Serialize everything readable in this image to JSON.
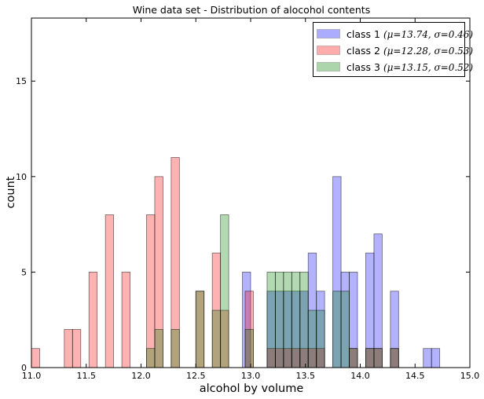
{
  "chart_data": {
    "type": "bar",
    "subtype": "overlapping-histogram",
    "title": "Wine data set - Distribution of alocohol contents",
    "xlabel": "alcohol by volume",
    "ylabel": "count",
    "xlim": [
      11.0,
      15.0
    ],
    "ylim": [
      0,
      18.3
    ],
    "xticks": [
      "11.0",
      "11.5",
      "12.0",
      "12.5",
      "13.0",
      "13.5",
      "14.0",
      "14.5",
      "15.0"
    ],
    "yticks": [
      "0",
      "5",
      "10",
      "15"
    ],
    "grid": false,
    "legend_position": "top-right",
    "bin_width": 0.075,
    "series": [
      {
        "label_text": "class 1",
        "label_math": "(μ=13.74, σ=0.46)",
        "color": "#0000ff",
        "alpha": 0.3,
        "bins": [
          {
            "x": 12.925,
            "count": 5
          },
          {
            "x": 13.15,
            "count": 4
          },
          {
            "x": 13.225,
            "count": 4
          },
          {
            "x": 13.3,
            "count": 4
          },
          {
            "x": 13.375,
            "count": 4
          },
          {
            "x": 13.45,
            "count": 4
          },
          {
            "x": 13.525,
            "count": 6
          },
          {
            "x": 13.6,
            "count": 4
          },
          {
            "x": 13.75,
            "count": 10
          },
          {
            "x": 13.825,
            "count": 5
          },
          {
            "x": 13.9,
            "count": 5
          },
          {
            "x": 14.05,
            "count": 6
          },
          {
            "x": 14.125,
            "count": 7
          },
          {
            "x": 14.275,
            "count": 4
          },
          {
            "x": 14.575,
            "count": 1
          },
          {
            "x": 14.65,
            "count": 1
          }
        ]
      },
      {
        "label_text": "class 2",
        "label_math": "(μ=12.28, σ=0.53)",
        "color": "#ff0000",
        "alpha": 0.3,
        "bins": [
          {
            "x": 11.0,
            "count": 1
          },
          {
            "x": 11.3,
            "count": 2
          },
          {
            "x": 11.375,
            "count": 2
          },
          {
            "x": 11.525,
            "count": 5
          },
          {
            "x": 11.675,
            "count": 8
          },
          {
            "x": 11.825,
            "count": 5
          },
          {
            "x": 12.05,
            "count": 8
          },
          {
            "x": 12.125,
            "count": 10
          },
          {
            "x": 12.275,
            "count": 11
          },
          {
            "x": 12.5,
            "count": 4
          },
          {
            "x": 12.65,
            "count": 6
          },
          {
            "x": 12.725,
            "count": 3
          },
          {
            "x": 12.95,
            "count": 4
          },
          {
            "x": 13.15,
            "count": 1
          },
          {
            "x": 13.225,
            "count": 1
          },
          {
            "x": 13.3,
            "count": 1
          },
          {
            "x": 13.375,
            "count": 1
          },
          {
            "x": 13.45,
            "count": 1
          },
          {
            "x": 13.525,
            "count": 1
          },
          {
            "x": 13.6,
            "count": 1
          },
          {
            "x": 13.9,
            "count": 1
          },
          {
            "x": 14.05,
            "count": 1
          },
          {
            "x": 14.125,
            "count": 1
          },
          {
            "x": 14.275,
            "count": 1
          }
        ]
      },
      {
        "label_text": "class 3",
        "label_math": "(μ=13.15, σ=0.52)",
        "color": "#008000",
        "alpha": 0.3,
        "bins": [
          {
            "x": 12.05,
            "count": 1
          },
          {
            "x": 12.125,
            "count": 2
          },
          {
            "x": 12.275,
            "count": 2
          },
          {
            "x": 12.5,
            "count": 4
          },
          {
            "x": 12.65,
            "count": 3
          },
          {
            "x": 12.725,
            "count": 8
          },
          {
            "x": 12.95,
            "count": 2
          },
          {
            "x": 13.15,
            "count": 5
          },
          {
            "x": 13.225,
            "count": 5
          },
          {
            "x": 13.3,
            "count": 5
          },
          {
            "x": 13.375,
            "count": 5
          },
          {
            "x": 13.45,
            "count": 5
          },
          {
            "x": 13.525,
            "count": 3
          },
          {
            "x": 13.6,
            "count": 3
          },
          {
            "x": 13.75,
            "count": 4
          },
          {
            "x": 13.825,
            "count": 4
          },
          {
            "x": 13.9,
            "count": 1
          },
          {
            "x": 14.05,
            "count": 1
          },
          {
            "x": 14.125,
            "count": 1
          },
          {
            "x": 14.275,
            "count": 1
          }
        ]
      }
    ]
  }
}
